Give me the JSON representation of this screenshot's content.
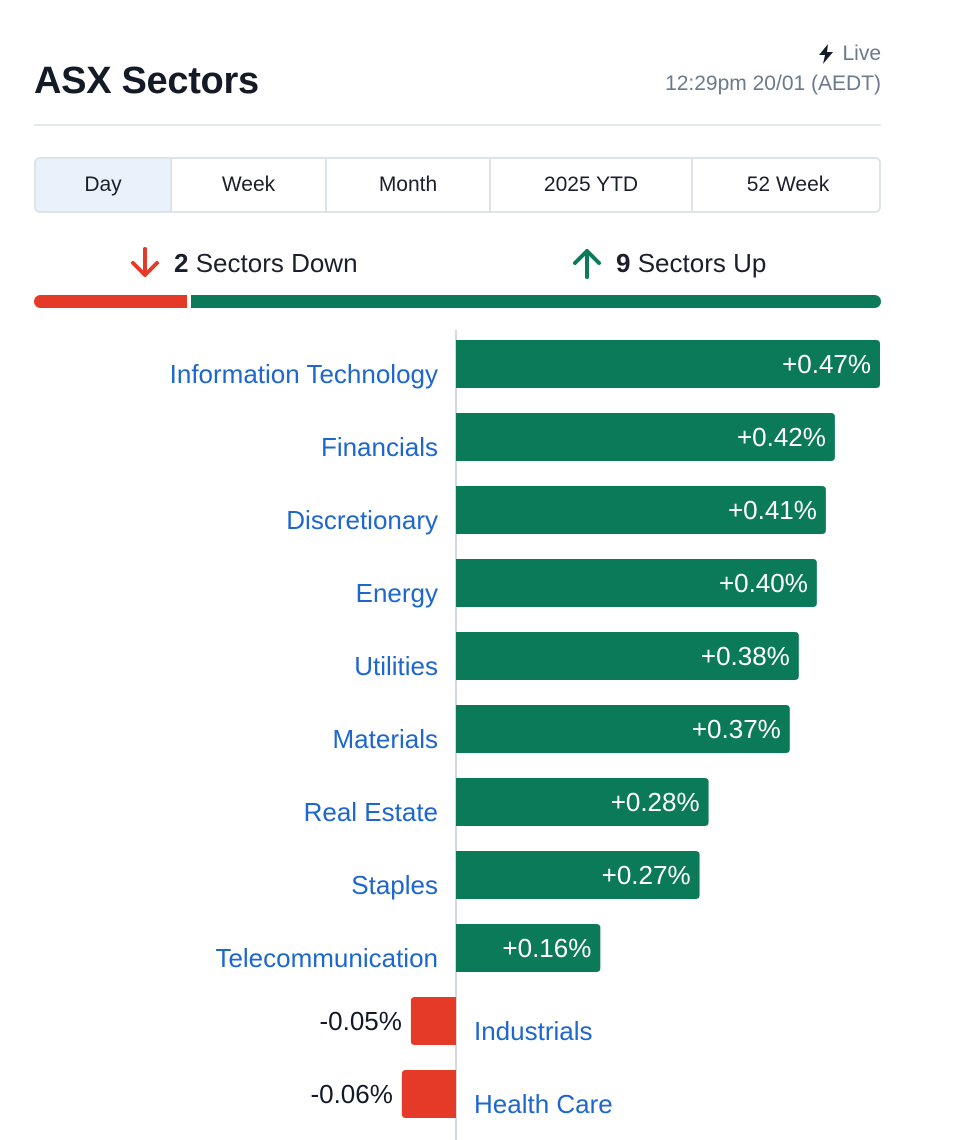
{
  "header": {
    "title": "ASX Sectors",
    "live_label": "Live",
    "timestamp": "12:29pm 20/01 (AEDT)"
  },
  "tabs": [
    {
      "label": "Day",
      "active": true
    },
    {
      "label": "Week",
      "active": false
    },
    {
      "label": "Month",
      "active": false
    },
    {
      "label": "2025 YTD",
      "active": false
    },
    {
      "label": "52 Week",
      "active": false
    }
  ],
  "summary": {
    "down_count": "2",
    "down_label": "Sectors Down",
    "up_count": "9",
    "up_label": "Sectors Up"
  },
  "colors": {
    "up": "#0b7a59",
    "down": "#e53a27",
    "link": "#1e66d0",
    "muted": "#6b7a8c"
  },
  "chart_data": {
    "type": "bar",
    "orientation": "horizontal",
    "categories": [
      "Information Technology",
      "Financials",
      "Discretionary",
      "Energy",
      "Utilities",
      "Materials",
      "Real Estate",
      "Staples",
      "Telecommunication",
      "Industrials",
      "Health Care"
    ],
    "values": [
      0.47,
      0.42,
      0.41,
      0.4,
      0.38,
      0.37,
      0.28,
      0.27,
      0.16,
      -0.05,
      -0.06
    ],
    "labels": [
      "+0.47%",
      "+0.42%",
      "+0.41%",
      "+0.40%",
      "+0.38%",
      "+0.37%",
      "+0.28%",
      "+0.27%",
      "+0.16%",
      "-0.05%",
      "-0.06%"
    ],
    "xlim": [
      -0.06,
      0.47
    ],
    "grid": false,
    "legend": "none"
  }
}
